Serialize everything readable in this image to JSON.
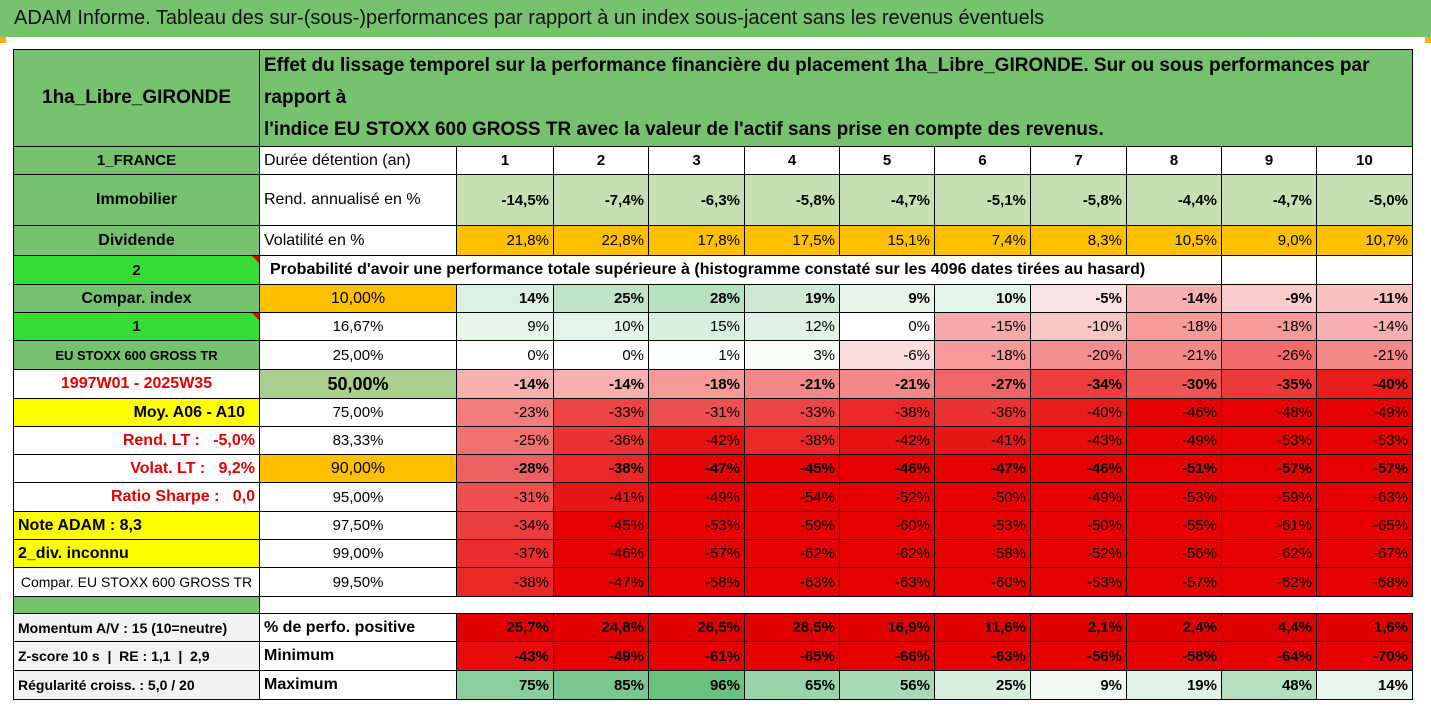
{
  "title": "ADAM Informe. Tableau des sur-(sous-)performances par rapport à un index sous-jacent sans les revenus éventuels",
  "header": {
    "asset_name": "1ha_Libre_GIRONDE",
    "description_line1": "Effet du lissage temporel sur la performance financière du placement 1ha_Libre_GIRONDE. Sur ou sous performances par rapport à",
    "description_line2": "l'indice EU STOXX 600 GROSS TR avec la valeur de l'actif sans prise en compte des revenus."
  },
  "side_labels": {
    "country": "1_FRANCE",
    "category": "Immobilier",
    "dividend": "Dividende",
    "two": "2",
    "compar_index": "Compar. index",
    "one": "1",
    "index_name": "EU STOXX 600 GROSS TR",
    "period": "1997W01 - 2025W35",
    "moy": "Moy. A06 - A10",
    "rend_lt": "Rend. LT :   -5,0%",
    "volat_lt": "Volat. LT :   9,2%",
    "sharpe": "Ratio Sharpe :   0,0",
    "note": "Note ADAM : 8,3",
    "div": "2_div. inconnu",
    "compar_full": "Compar. EU STOXX 600 GROSS TR"
  },
  "colors": {
    "title_green": "#77c26f",
    "lime": "#33dd33",
    "yellow": "#ffff00",
    "orange": "#ffc000",
    "red_text": "#e00000"
  },
  "top_rows": {
    "duree_label": "Durée détention (an)",
    "years": [
      "1",
      "2",
      "3",
      "4",
      "5",
      "6",
      "7",
      "8",
      "9",
      "10"
    ],
    "rend_label": "Rend. annualisé en %",
    "rend_values": [
      "-14,5%",
      "-7,4%",
      "-6,3%",
      "-5,8%",
      "-4,7%",
      "-5,1%",
      "-5,8%",
      "-4,4%",
      "-4,7%",
      "-5,0%"
    ],
    "vol_label": "Volatilité en %",
    "vol_values": [
      "21,8%",
      "22,8%",
      "17,8%",
      "17,5%",
      "15,1%",
      "7,4%",
      "8,3%",
      "10,5%",
      "9,0%",
      "10,7%"
    ]
  },
  "probability_header": "Probabilité d'avoir une performance totale supérieure à (histogramme constaté sur les 4096 dates tirées au hasard)",
  "probability_rows": [
    {
      "pct": "10,00%",
      "values": [
        "14%",
        "25%",
        "28%",
        "19%",
        "9%",
        "10%",
        "-5%",
        "-14%",
        "-9%",
        "-11%"
      ],
      "bold": true
    },
    {
      "pct": "16,67%",
      "values": [
        "9%",
        "10%",
        "15%",
        "12%",
        "0%",
        "-15%",
        "-10%",
        "-18%",
        "-18%",
        "-14%"
      ],
      "bold": false
    },
    {
      "pct": "25,00%",
      "values": [
        "0%",
        "0%",
        "1%",
        "3%",
        "-6%",
        "-18%",
        "-20%",
        "-21%",
        "-26%",
        "-21%"
      ],
      "bold": false
    },
    {
      "pct": "50,00%",
      "values": [
        "-14%",
        "-14%",
        "-18%",
        "-21%",
        "-21%",
        "-27%",
        "-34%",
        "-30%",
        "-35%",
        "-40%"
      ],
      "bold": true
    },
    {
      "pct": "75,00%",
      "values": [
        "-23%",
        "-33%",
        "-31%",
        "-33%",
        "-38%",
        "-36%",
        "-40%",
        "-46%",
        "-48%",
        "-49%"
      ],
      "bold": false
    },
    {
      "pct": "83,33%",
      "values": [
        "-25%",
        "-36%",
        "-42%",
        "-38%",
        "-42%",
        "-41%",
        "-43%",
        "-49%",
        "-53%",
        "-53%"
      ],
      "bold": false
    },
    {
      "pct": "90,00%",
      "values": [
        "-28%",
        "-38%",
        "-47%",
        "-45%",
        "-46%",
        "-47%",
        "-46%",
        "-51%",
        "-57%",
        "-57%"
      ],
      "bold": true
    },
    {
      "pct": "95,00%",
      "values": [
        "-31%",
        "-41%",
        "-49%",
        "-54%",
        "-52%",
        "-50%",
        "-49%",
        "-53%",
        "-59%",
        "-63%"
      ],
      "bold": false
    },
    {
      "pct": "97,50%",
      "values": [
        "-34%",
        "-45%",
        "-53%",
        "-59%",
        "-60%",
        "-53%",
        "-50%",
        "-55%",
        "-61%",
        "-65%"
      ],
      "bold": false
    },
    {
      "pct": "99,00%",
      "values": [
        "-37%",
        "-46%",
        "-57%",
        "-62%",
        "-62%",
        "-58%",
        "-52%",
        "-56%",
        "-62%",
        "-67%"
      ],
      "bold": false
    },
    {
      "pct": "99,50%",
      "values": [
        "-38%",
        "-47%",
        "-58%",
        "-63%",
        "-63%",
        "-60%",
        "-53%",
        "-57%",
        "-62%",
        "-68%"
      ],
      "bold": false
    }
  ],
  "bottom_rows": [
    {
      "side": "Momentum A/V : 15 (10=neutre)",
      "label": "% de perfo. positive",
      "values": [
        "25,7%",
        "24,8%",
        "26,5%",
        "28,5%",
        "16,9%",
        "11,6%",
        "2,1%",
        "2,4%",
        "4,4%",
        "1,6%"
      ]
    },
    {
      "side": "Z-score 10 s  |  RE : 1,1  |  2,9",
      "label": "Minimum",
      "values": [
        "-43%",
        "-49%",
        "-61%",
        "-65%",
        "-66%",
        "-63%",
        "-56%",
        "-58%",
        "-64%",
        "-70%"
      ]
    },
    {
      "side": "Régularité croiss. : 5,0 / 20",
      "label": "Maximum",
      "values": [
        "75%",
        "85%",
        "96%",
        "65%",
        "56%",
        "25%",
        "9%",
        "19%",
        "48%",
        "14%"
      ]
    }
  ]
}
